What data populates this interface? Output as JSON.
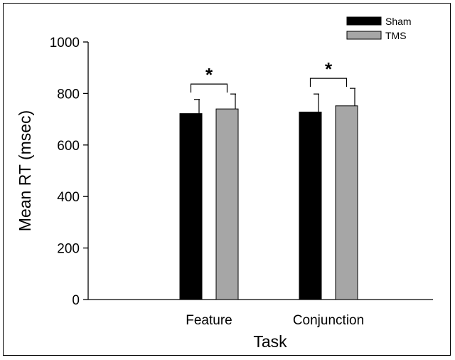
{
  "chart_data": {
    "type": "bar",
    "categories": [
      "Feature",
      "Conjunction"
    ],
    "series": [
      {
        "name": "Sham",
        "values": [
          722,
          728
        ],
        "errors": [
          55,
          70
        ],
        "color": "#000000"
      },
      {
        "name": "TMS",
        "values": [
          740,
          752
        ],
        "errors": [
          58,
          68
        ],
        "color": "#a6a6a6"
      }
    ],
    "xlabel": "Task",
    "ylabel": "Mean RT (msec)",
    "ylim": [
      0,
      1000
    ],
    "yticks": [
      0,
      200,
      400,
      600,
      800,
      1000
    ],
    "ytick_labels": [
      "0",
      "200",
      "400",
      "600",
      "800",
      "1000"
    ],
    "significance": [
      {
        "category": "Feature",
        "label": "*"
      },
      {
        "category": "Conjunction",
        "label": "*"
      }
    ],
    "legend": {
      "placement": "top-right"
    },
    "grid": false
  }
}
